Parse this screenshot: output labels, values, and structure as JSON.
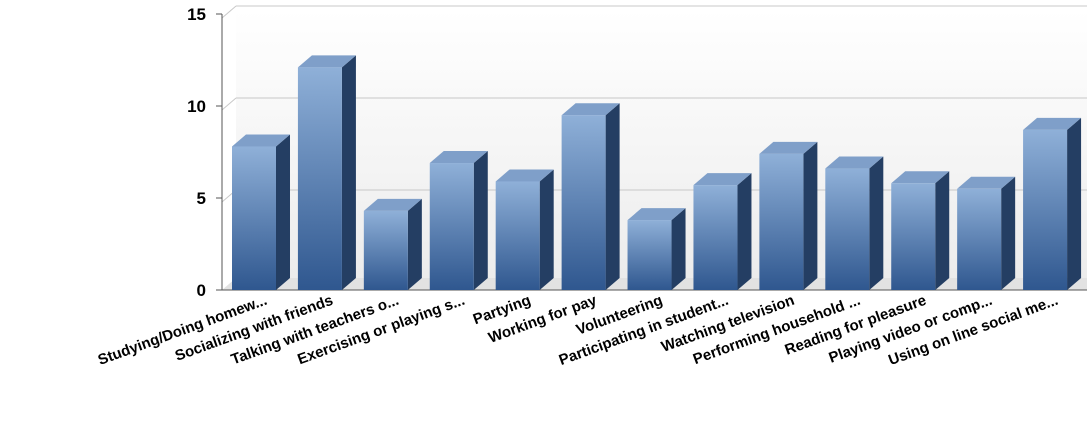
{
  "chart_data": {
    "type": "bar",
    "categories": [
      "Studying/Doing homew...",
      "Socializing with friends",
      "Talking with teachers o...",
      "Exercising or playing s...",
      "Partying",
      "Working for pay",
      "Volunteering",
      "Participating in student...",
      "Watching television",
      "Performing household ...",
      "Reading for pleasure",
      "Playing video or comp...",
      "Using on line social me..."
    ],
    "values": [
      7.8,
      12.1,
      4.3,
      6.9,
      5.9,
      9.5,
      3.8,
      5.7,
      7.4,
      6.6,
      5.8,
      5.5,
      8.7
    ],
    "ylim": [
      0,
      15
    ],
    "yticks": [
      0,
      5,
      10,
      15
    ],
    "grid": true,
    "style": "3d-bar",
    "colors": {
      "bar_front_top": "#8fb0d8",
      "bar_front_bottom": "#2f578f",
      "bar_top": "#7f9fc9",
      "bar_side": "#243e63",
      "plot_bg": "#f3f3f3",
      "grid": "#c8c8c8"
    }
  }
}
